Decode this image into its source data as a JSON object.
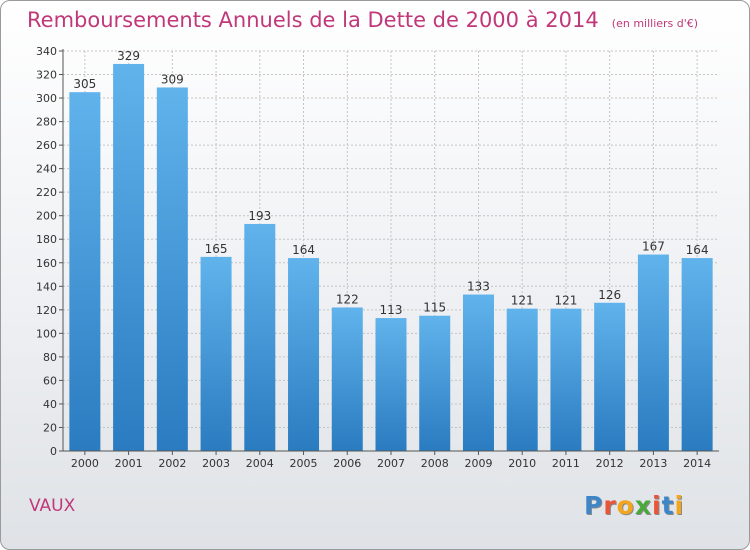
{
  "title": {
    "main": "Remboursements Annuels de la Dette de 2000 à 2014",
    "sub": "(en milliers d'€)"
  },
  "commune": "VAUX",
  "logo": {
    "text": "Proxiti",
    "letter_colors": [
      "#3f86c8",
      "#e8553a",
      "#f2a51d",
      "#4aa83c",
      "#e8553a",
      "#3f86c8",
      "#f2a51d"
    ]
  },
  "colors": {
    "bar_top": "#61b3ec",
    "bar_bottom": "#2a7bc0",
    "accent": "#c0387a"
  },
  "chart_data": {
    "type": "bar",
    "title": "Remboursements Annuels de la Dette de 2000 à 2014",
    "subtitle": "(en milliers d'€)",
    "xlabel": "",
    "ylabel": "",
    "categories": [
      "2000",
      "2001",
      "2002",
      "2003",
      "2004",
      "2005",
      "2006",
      "2007",
      "2008",
      "2009",
      "2010",
      "2011",
      "2012",
      "2013",
      "2014"
    ],
    "values": [
      305,
      329,
      309,
      165,
      193,
      164,
      122,
      113,
      115,
      133,
      121,
      121,
      126,
      167,
      164
    ],
    "ylim": [
      0,
      340
    ],
    "yticks": [
      0,
      20,
      40,
      60,
      80,
      100,
      120,
      140,
      160,
      180,
      200,
      220,
      240,
      260,
      280,
      300,
      320,
      340
    ],
    "grid": true,
    "legend": "none"
  }
}
